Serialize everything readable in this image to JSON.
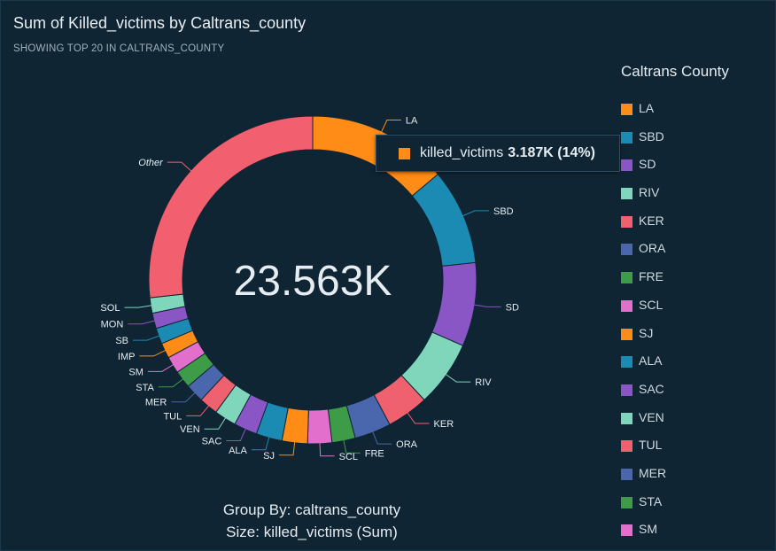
{
  "header": {
    "title": "Sum of Killed_victims by Caltrans_county",
    "subtitle": "SHOWING TOP 20 IN CALTRANS_COUNTY"
  },
  "legend": {
    "title": "Caltrans County",
    "items": [
      {
        "label": "LA",
        "color": "#ff8c16"
      },
      {
        "label": "SBD",
        "color": "#1b8bb4"
      },
      {
        "label": "SD",
        "color": "#8a55c4"
      },
      {
        "label": "RIV",
        "color": "#7fd6bb"
      },
      {
        "label": "KER",
        "color": "#f0616f"
      },
      {
        "label": "ORA",
        "color": "#4a67ad"
      },
      {
        "label": "FRE",
        "color": "#3e9c48"
      },
      {
        "label": "SCL",
        "color": "#e36fcc"
      },
      {
        "label": "SJ",
        "color": "#ff8c16"
      },
      {
        "label": "ALA",
        "color": "#1b8bb4"
      },
      {
        "label": "SAC",
        "color": "#8a55c4"
      },
      {
        "label": "VEN",
        "color": "#7fd6bb"
      },
      {
        "label": "TUL",
        "color": "#f0616f"
      },
      {
        "label": "MER",
        "color": "#4a67ad"
      },
      {
        "label": "STA",
        "color": "#3e9c48"
      },
      {
        "label": "SM",
        "color": "#e36fcc"
      }
    ]
  },
  "tooltip": {
    "series_label": "killed_victims",
    "value_text": "3.187K (14%)",
    "color": "#ff8c16"
  },
  "footer": {
    "group_by": "Group By: caltrans_county",
    "size": "Size: killed_victims (Sum)"
  },
  "chart_data": {
    "type": "pie",
    "variant": "donut",
    "total_label": "23.563K",
    "total": 23563,
    "slices": [
      {
        "label": "LA",
        "value": 3187,
        "color": "#ff8c16"
      },
      {
        "label": "SBD",
        "value": 2180,
        "color": "#1b8bb4"
      },
      {
        "label": "SD",
        "value": 1900,
        "color": "#8a55c4"
      },
      {
        "label": "RIV",
        "value": 1500,
        "color": "#7fd6bb"
      },
      {
        "label": "KER",
        "value": 950,
        "color": "#f0616f"
      },
      {
        "label": "ORA",
        "value": 830,
        "color": "#4a67ad"
      },
      {
        "label": "FRE",
        "value": 530,
        "color": "#3e9c48"
      },
      {
        "label": "SCL",
        "value": 550,
        "color": "#e36fcc"
      },
      {
        "label": "SJ",
        "value": 580,
        "color": "#ff8c16"
      },
      {
        "label": "ALA",
        "value": 590,
        "color": "#1b8bb4"
      },
      {
        "label": "SAC",
        "value": 530,
        "color": "#8a55c4"
      },
      {
        "label": "VEN",
        "value": 500,
        "color": "#7fd6bb"
      },
      {
        "label": "TUL",
        "value": 430,
        "color": "#f0616f"
      },
      {
        "label": "MER",
        "value": 420,
        "color": "#4a67ad"
      },
      {
        "label": "STA",
        "value": 400,
        "color": "#3e9c48"
      },
      {
        "label": "SM",
        "value": 380,
        "color": "#e36fcc"
      },
      {
        "label": "IMP",
        "value": 350,
        "color": "#ff8c16"
      },
      {
        "label": "SB",
        "value": 360,
        "color": "#1b8bb4"
      },
      {
        "label": "MON",
        "value": 350,
        "color": "#8a55c4"
      },
      {
        "label": "SOL",
        "value": 350,
        "color": "#7fd6bb"
      },
      {
        "label": "Other",
        "value": 6156,
        "color": "#f25f6f"
      }
    ]
  }
}
